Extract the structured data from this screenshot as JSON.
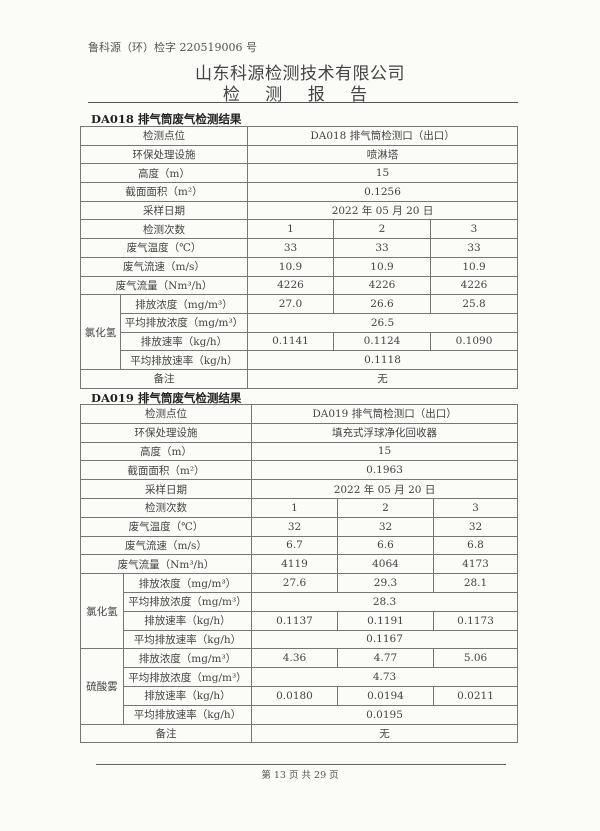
{
  "header": {
    "report_code": "鲁科源（环）检字 220519006 号",
    "company": "山东科源检测技术有限公司",
    "title": "检 测 报 告"
  },
  "tables": [
    {
      "title": "DA018 排气筒废气检测结果",
      "rows": [
        {
          "label": "检测点位",
          "span": "DA018 排气筒检测口（出口）"
        },
        {
          "label": "环保处理设施",
          "span": "喷淋塔"
        },
        {
          "label": "高度（m）",
          "span": "15"
        },
        {
          "label": "截面面积（m²）",
          "span": "0.1256"
        },
        {
          "label": "采样日期",
          "span": "2022 年 05 月 20 日"
        },
        {
          "label": "检测次数",
          "values": [
            "1",
            "2",
            "3"
          ]
        },
        {
          "label": "废气温度（℃）",
          "values": [
            "33",
            "33",
            "33"
          ]
        },
        {
          "label": "废气流速（m/s）",
          "values": [
            "10.9",
            "10.9",
            "10.9"
          ]
        },
        {
          "label": "废气流量（Nm³/h）",
          "values": [
            "4226",
            "4226",
            "4226"
          ]
        }
      ],
      "groups": [
        {
          "name": "氯化氢",
          "rows": [
            {
              "label": "排放浓度（mg/m³）",
              "values": [
                "27.0",
                "26.6",
                "25.8"
              ]
            },
            {
              "label": "平均排放浓度（mg/m³）",
              "span": "26.5"
            },
            {
              "label": "排放速率（kg/h）",
              "values": [
                "0.1141",
                "0.1124",
                "0.1090"
              ]
            },
            {
              "label": "平均排放速率（kg/h）",
              "span": "0.1118"
            }
          ]
        }
      ],
      "remark": {
        "label": "备注",
        "value": "无"
      }
    },
    {
      "title": "DA019 排气筒废气检测结果",
      "rows": [
        {
          "label": "检测点位",
          "span": "DA019 排气筒检测口（出口）"
        },
        {
          "label": "环保处理设施",
          "span": "填充式浮球净化回收器"
        },
        {
          "label": "高度（m）",
          "span": "15"
        },
        {
          "label": "截面面积（m²）",
          "span": "0.1963"
        },
        {
          "label": "采样日期",
          "span": "2022 年 05 月 20 日"
        },
        {
          "label": "检测次数",
          "values": [
            "1",
            "2",
            "3"
          ]
        },
        {
          "label": "废气温度（℃）",
          "values": [
            "32",
            "32",
            "32"
          ]
        },
        {
          "label": "废气流速（m/s）",
          "values": [
            "6.7",
            "6.6",
            "6.8"
          ]
        },
        {
          "label": "废气流量（Nm³/h）",
          "values": [
            "4119",
            "4064",
            "4173"
          ]
        }
      ],
      "groups": [
        {
          "name": "氯化氢",
          "rows": [
            {
              "label": "排放浓度（mg/m³）",
              "values": [
                "27.6",
                "29.3",
                "28.1"
              ]
            },
            {
              "label": "平均排放浓度（mg/m³）",
              "span": "28.3"
            },
            {
              "label": "排放速率（kg/h）",
              "values": [
                "0.1137",
                "0.1191",
                "0.1173"
              ]
            },
            {
              "label": "平均排放速率（kg/h）",
              "span": "0.1167"
            }
          ]
        },
        {
          "name": "硫酸雾",
          "rows": [
            {
              "label": "排放浓度（mg/m³）",
              "values": [
                "4.36",
                "4.77",
                "5.06"
              ]
            },
            {
              "label": "平均排放浓度（mg/m³）",
              "span": "4.73"
            },
            {
              "label": "排放速率（kg/h）",
              "values": [
                "0.0180",
                "0.0194",
                "0.0211"
              ]
            },
            {
              "label": "平均排放速率（kg/h）",
              "span": "0.0195"
            }
          ]
        }
      ],
      "remark": {
        "label": "备注",
        "value": "无"
      }
    }
  ],
  "footer": {
    "page": "第 13 页 共 29 页"
  }
}
